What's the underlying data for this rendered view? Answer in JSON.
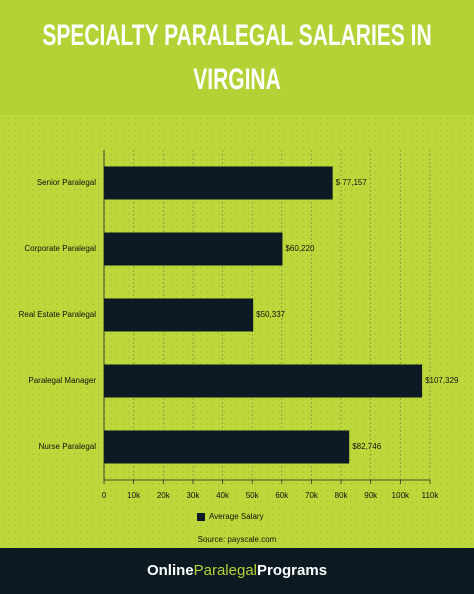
{
  "chart_data": {
    "type": "hbar",
    "title": "SPECIALTY PARALEGAL SALARIES IN VIRGINA",
    "categories": [
      "Senior Paralegal",
      "Corporate Paralegal",
      "Real Estate Paralegal",
      "Paralegal Manager",
      "Nurse Paralegal"
    ],
    "series": [
      {
        "name": "Average Salary",
        "color": "#0d1a24",
        "values": [
          77157,
          60220,
          50337,
          107329,
          82746
        ],
        "value_labels": [
          "$ 77,157",
          "$60,220",
          "$50,337",
          "$107,329",
          "$82,746"
        ]
      }
    ],
    "xlim": [
      0,
      110000
    ],
    "xticks": [
      0,
      {
        "value": 10000,
        "label": "10k"
      },
      {
        "value": 20000,
        "label": "20k"
      },
      {
        "value": 30000,
        "label": "30k"
      },
      {
        "value": 40000,
        "label": "40k"
      },
      {
        "value": 50000,
        "label": "50k"
      },
      {
        "value": 60000,
        "label": "60k"
      },
      {
        "value": 70000,
        "label": "70k"
      },
      {
        "value": 80000,
        "label": "80k"
      },
      {
        "value": 90000,
        "label": "90k"
      },
      {
        "value": 100000,
        "label": "100k"
      },
      {
        "value": 110000,
        "label": "110k"
      }
    ],
    "grid": true,
    "legend": "bottom",
    "source": "Source: payscale.com"
  },
  "footer": {
    "brand": [
      "Online",
      "Paralegal",
      "Programs"
    ]
  }
}
